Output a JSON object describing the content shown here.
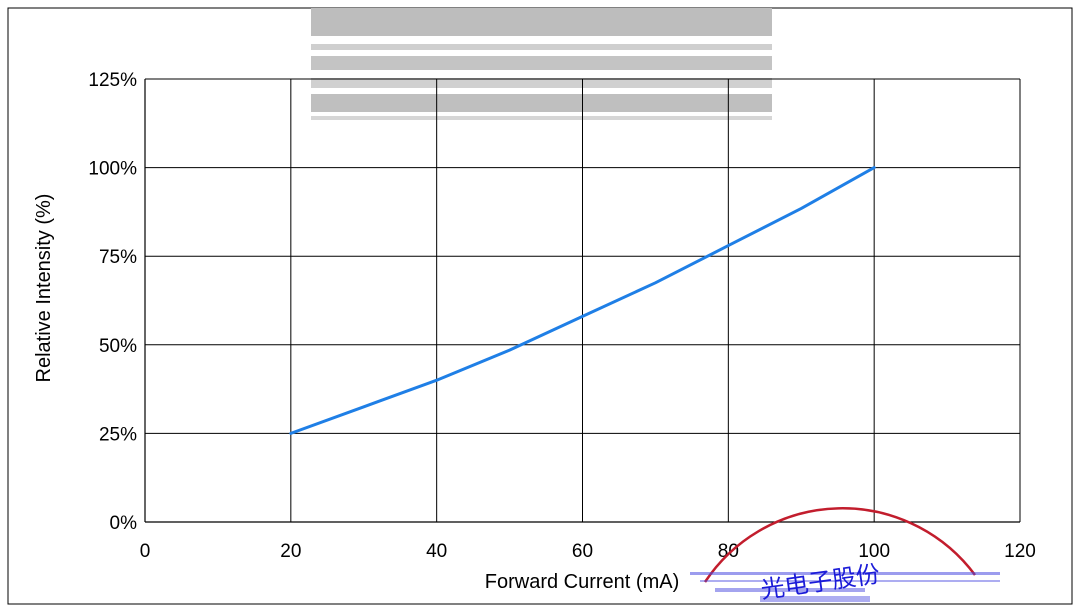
{
  "chart_data": {
    "type": "line",
    "title": "",
    "xlabel": "Forward Current (mA)",
    "ylabel": "Relative Intensity (%)",
    "xlim": [
      0,
      120
    ],
    "ylim": [
      0,
      125
    ],
    "x_ticks": [
      "0",
      "20",
      "40",
      "60",
      "80",
      "100",
      "120"
    ],
    "y_ticks": [
      "0%",
      "25%",
      "50%",
      "75%",
      "100%",
      "125%"
    ],
    "grid": true,
    "legend": "none",
    "series": [
      {
        "color": "#1f7fe6",
        "points": [
          {
            "x": 20,
            "y": 25
          },
          {
            "x": 30,
            "y": 32.5
          },
          {
            "x": 40,
            "y": 40
          },
          {
            "x": 50,
            "y": 48.5
          },
          {
            "x": 60,
            "y": 58
          },
          {
            "x": 70,
            "y": 67.5
          },
          {
            "x": 80,
            "y": 78
          },
          {
            "x": 90,
            "y": 88.5
          },
          {
            "x": 100,
            "y": 100
          }
        ]
      }
    ]
  },
  "stamp": {
    "text": "光电子股份",
    "border_color": "#c21d2d",
    "ink_color": "#1b1bd8"
  },
  "colors": {
    "grid": "#000000",
    "axis": "#000000",
    "watermark": "#b8b8b8"
  }
}
